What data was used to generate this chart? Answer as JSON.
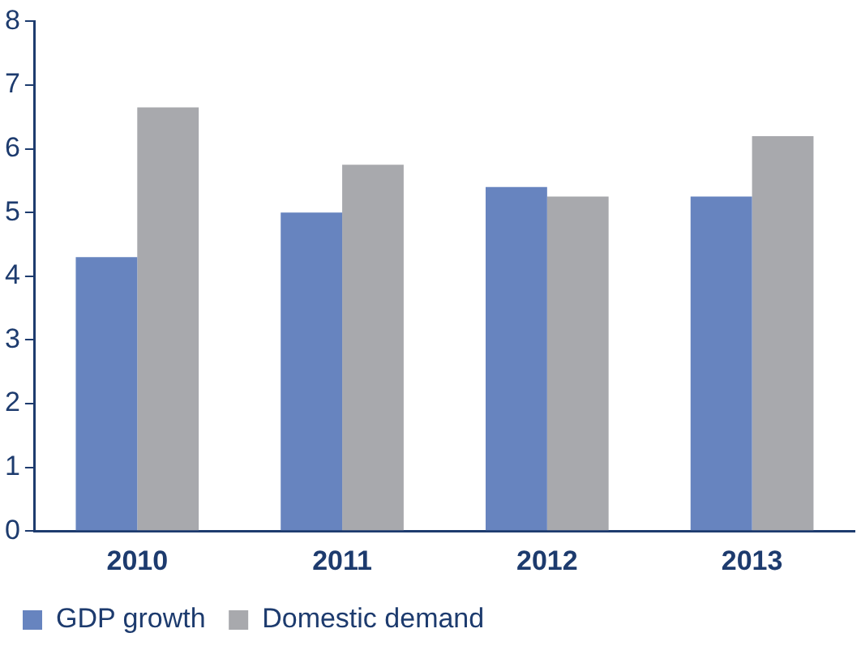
{
  "chart_data": {
    "type": "bar",
    "categories": [
      "2010",
      "2011",
      "2012",
      "2013"
    ],
    "series": [
      {
        "name": "GDP growth",
        "color": "#6784bf",
        "values": [
          4.3,
          5.0,
          5.4,
          5.25
        ]
      },
      {
        "name": "Domestic demand",
        "color": "#a8a9ad",
        "values": [
          6.65,
          5.75,
          5.25,
          6.2
        ]
      }
    ],
    "ylim": [
      0,
      8
    ],
    "yticks": [
      0,
      1,
      2,
      3,
      4,
      5,
      6,
      7,
      8
    ],
    "grid": false,
    "legend": "bottom left"
  }
}
